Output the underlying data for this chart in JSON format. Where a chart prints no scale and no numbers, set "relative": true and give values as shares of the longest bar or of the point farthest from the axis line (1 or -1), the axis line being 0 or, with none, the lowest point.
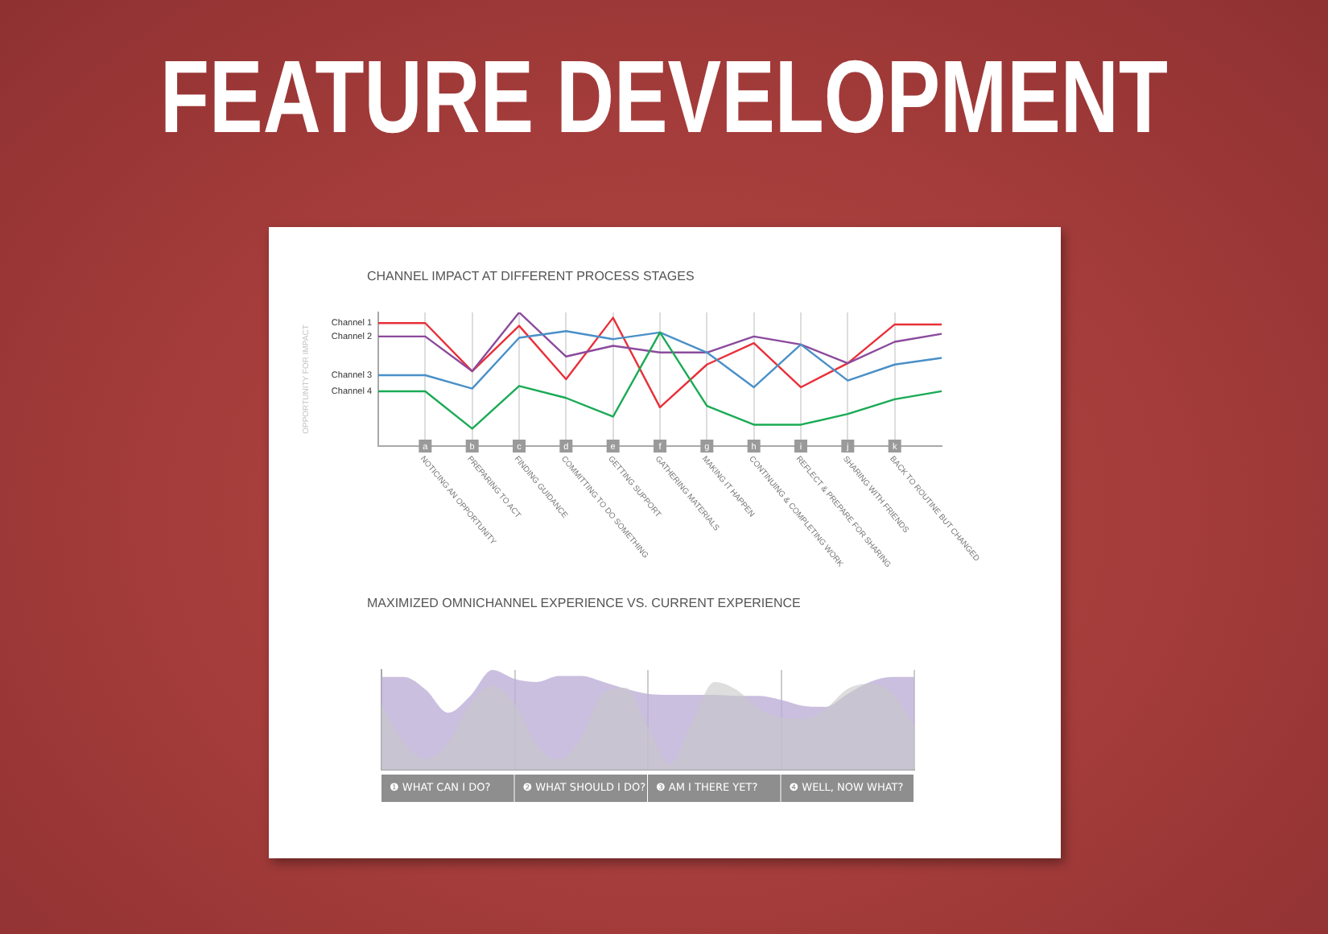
{
  "chart_data": [
    {
      "type": "line",
      "title": "FEATURE DEVELOPMENT",
      "subtitle": "CHANNEL IMPACT AT DIFFERENT PROCESS STAGES",
      "ylabel": "OPPORTUNITY FOR IMPACT",
      "relative": true,
      "legend": false,
      "grid": "x",
      "marker": "none",
      "categories": [
        null,
        "a",
        "b",
        "c",
        "d",
        "e",
        "f",
        "g",
        "h",
        "i",
        "j",
        "k",
        null
      ],
      "series": [
        {
          "name": "Channel 1",
          "color": "#e8303a",
          "values": [
            0.92,
            0.92,
            0.56,
            0.9,
            0.5,
            0.96,
            0.29,
            0.61,
            0.77,
            0.44,
            0.62,
            0.91,
            0.91
          ]
        },
        {
          "name": "Channel 2",
          "color": "#8b4a9c",
          "values": [
            0.82,
            0.82,
            0.56,
            1,
            0.67,
            0.75,
            0.7,
            0.7,
            0.82,
            0.76,
            0.62,
            0.78,
            0.84
          ]
        },
        {
          "name": "Channel 3",
          "color": "#4a90c8",
          "values": [
            0.53,
            0.53,
            0.43,
            0.81,
            0.86,
            0.8,
            0.85,
            0.7,
            0.44,
            0.76,
            0.49,
            0.61,
            0.66
          ]
        },
        {
          "name": "Channel 4",
          "color": "#1aaa55",
          "values": [
            0.41,
            0.41,
            0.13,
            0.45,
            0.36,
            0.22,
            0.85,
            0.3,
            0.16,
            0.16,
            0.24,
            0.35,
            0.41
          ]
        }
      ],
      "annotations": [
        "NOTICING AN OPPORTUNITY",
        "PREPARING TO ACT",
        "FINDING GUIDANCE",
        "COMMITTING TO DO SOMETHING",
        "GETTING SUPPORT",
        "GATHERING MATERIALS",
        "MAKING IT HAPPEN",
        "CONTINUING & COMPLETING WORK",
        "REFLECT & PREPARE FOR SHARING",
        "SHARING WITH FRIENDS",
        "BACK TO ROUTINE BUT CHANGED"
      ]
    },
    {
      "type": "area",
      "title": "MAXIMIZED OMNICHANNEL EXPERIENCE VS. CURRENT EXPERIENCE",
      "relative": true,
      "legend": false,
      "grid": "x",
      "categories": [
        null,
        null,
        null,
        null,
        null,
        null,
        null,
        null,
        null,
        null,
        null,
        null,
        null,
        null,
        null,
        null,
        null,
        null,
        null,
        null,
        null,
        null,
        null,
        null,
        null
      ],
      "series": [
        {
          "color": "#bcaed6",
          "values": [
            0.93,
            0.93,
            0.8,
            0.57,
            0.74,
            1,
            0.91,
            0.88,
            0.94,
            0.94,
            0.88,
            0.81,
            0.76,
            0.75,
            0.75,
            0.75,
            0.74,
            0.74,
            0.7,
            0.64,
            0.63,
            0.76,
            0.88,
            0.93,
            0.93
          ]
        },
        {
          "color": "#c8c8c8",
          "values": [
            0.66,
            0.27,
            0.11,
            0.27,
            0.66,
            0.84,
            0.66,
            0.24,
            0.1,
            0.32,
            0.77,
            0.82,
            0.43,
            0.06,
            0.48,
            0.88,
            0.8,
            0.61,
            0.52,
            0.51,
            0.61,
            0.81,
            0.86,
            0.77,
            0.43
          ]
        }
      ],
      "annotations": [
        "❶ WHAT CAN I DO?",
        "❷ WHAT SHOULD I DO?",
        "❸ AM I THERE YET?",
        "❹ WELL, NOW WHAT?"
      ]
    }
  ]
}
